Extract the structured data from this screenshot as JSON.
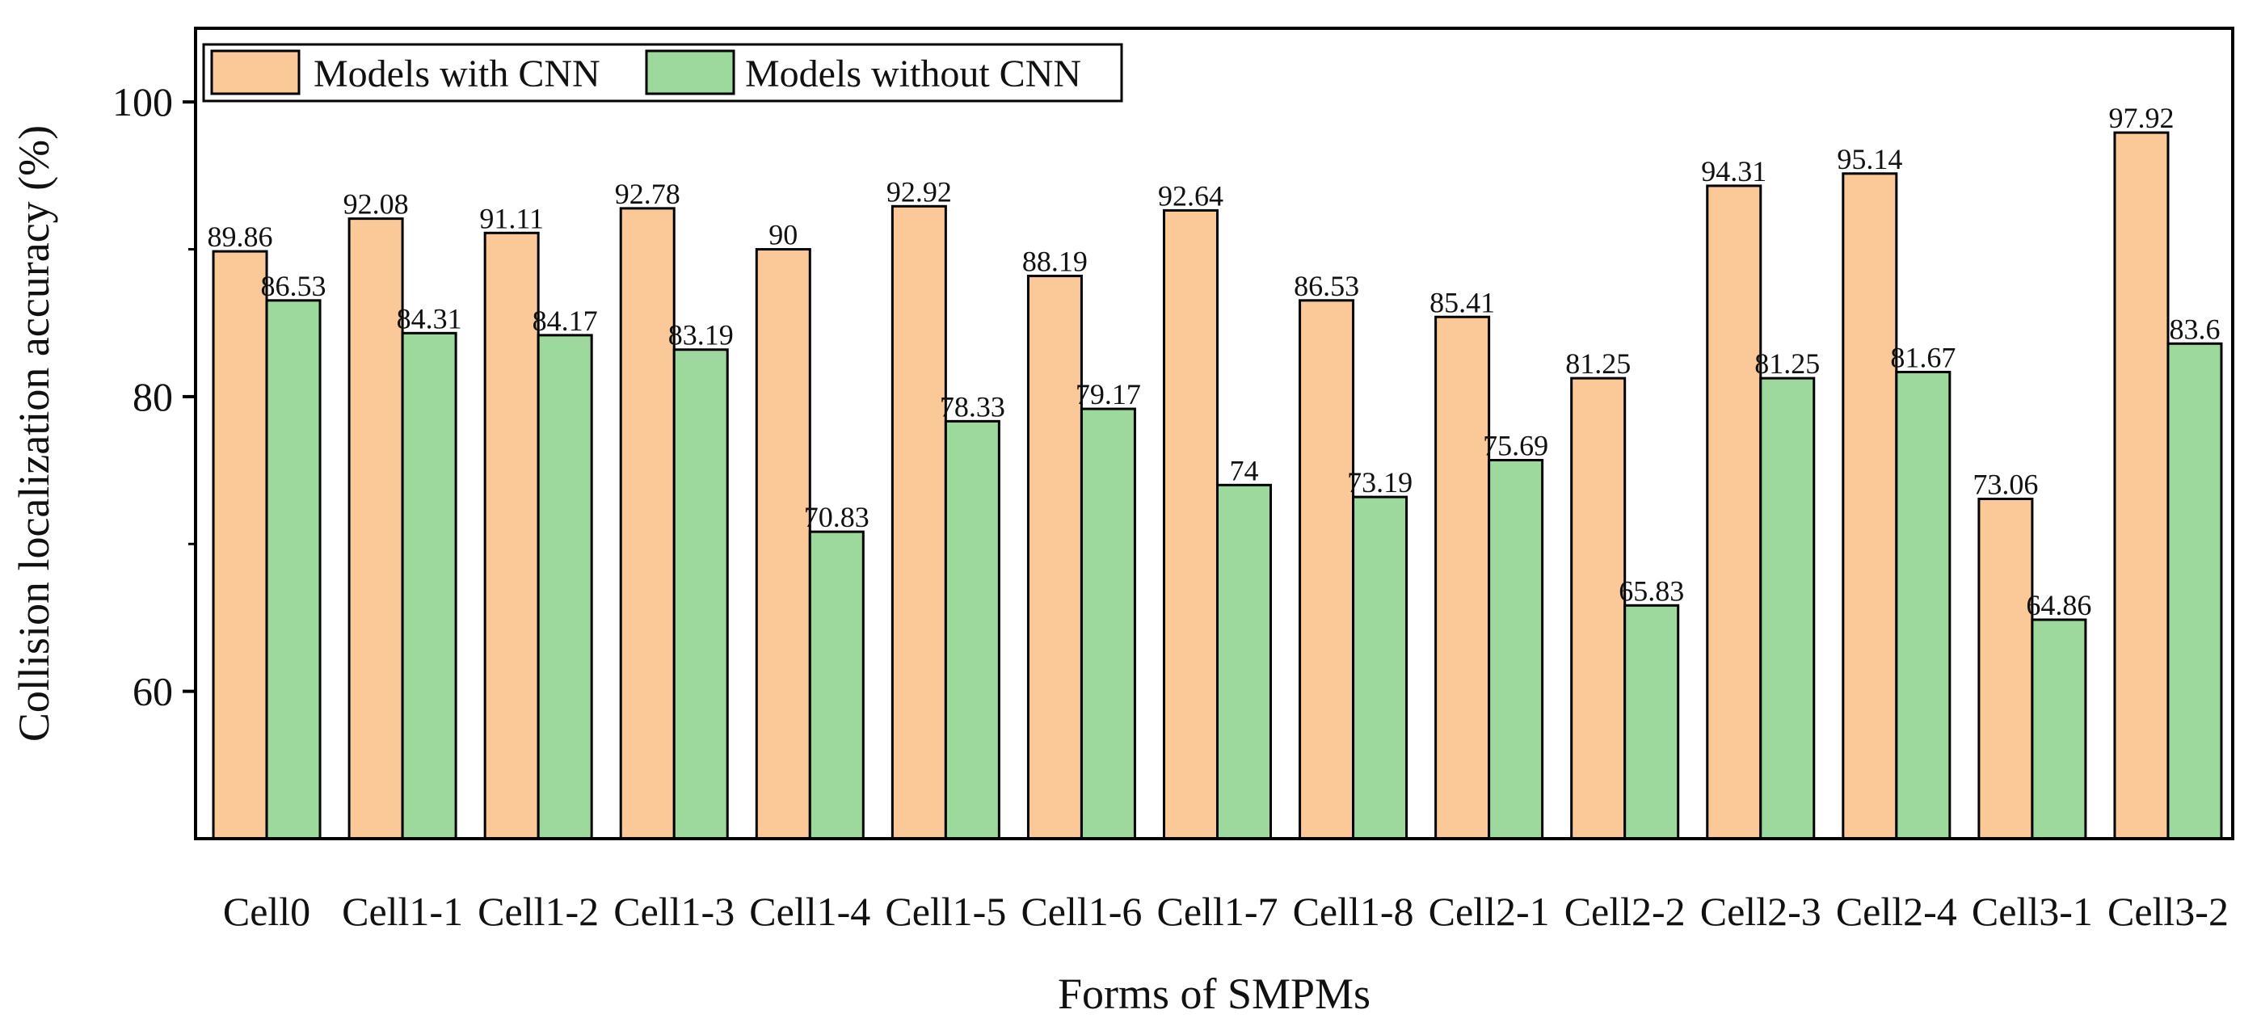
{
  "chart_data": {
    "type": "bar",
    "title": "",
    "xlabel": "Forms of SMPMs",
    "ylabel": "Collision localization accuracy (%)",
    "ylim": [
      50,
      105
    ],
    "yticks": [
      60,
      80,
      100
    ],
    "grid": false,
    "legend_position": "top-left",
    "categories": [
      "Cell0",
      "Cell1-1",
      "Cell1-2",
      "Cell1-3",
      "Cell1-4",
      "Cell1-5",
      "Cell1-6",
      "Cell1-7",
      "Cell1-8",
      "Cell2-1",
      "Cell2-2",
      "Cell2-3",
      "Cell2-4",
      "Cell3-1",
      "Cell3-2"
    ],
    "series": [
      {
        "name": "Models with CNN",
        "color": "#fbc897",
        "values": [
          89.86,
          92.08,
          91.11,
          92.78,
          90,
          92.92,
          88.19,
          92.64,
          86.53,
          85.41,
          81.25,
          94.31,
          95.14,
          73.06,
          97.92
        ],
        "labels": [
          "89.86",
          "92.08",
          "91.11",
          "92.78",
          "90",
          "92.92",
          "88.19",
          "92.64",
          "86.53",
          "85.41",
          "81.25",
          "94.31",
          "95.14",
          "73.06",
          "97.92"
        ]
      },
      {
        "name": "Models without CNN",
        "color": "#9dd89c",
        "values": [
          86.53,
          84.31,
          84.17,
          83.19,
          70.83,
          78.33,
          79.17,
          74,
          73.19,
          75.69,
          65.83,
          81.25,
          81.67,
          64.86,
          83.6
        ],
        "labels": [
          "86.53",
          "84.31",
          "84.17",
          "83.19",
          "70.83",
          "78.33",
          "79.17",
          "74",
          "73.19",
          "75.69",
          "65.83",
          "81.25",
          "81.67",
          "64.86",
          "83.6"
        ]
      }
    ]
  }
}
